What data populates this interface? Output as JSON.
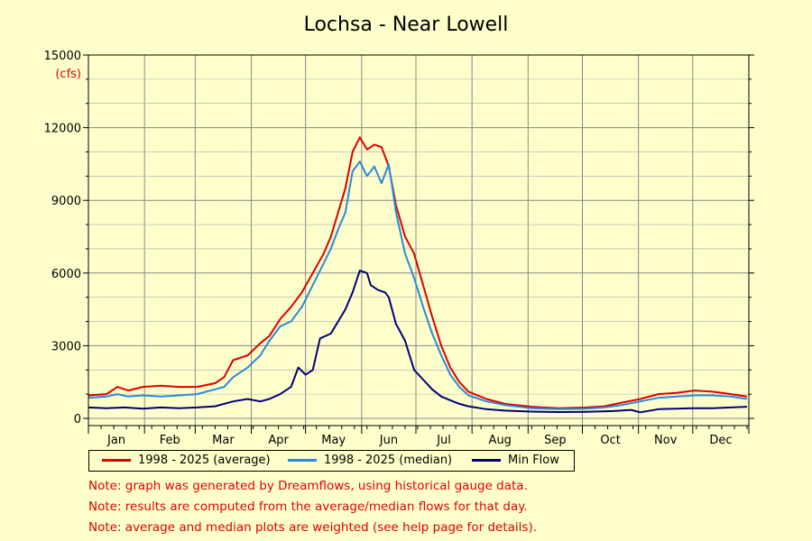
{
  "chart_data": {
    "type": "line",
    "title": "Lochsa - Near Lowell",
    "ylabel": "(cfs)",
    "ylim": [
      0,
      15000
    ],
    "yticks": [
      0,
      3000,
      6000,
      9000,
      12000,
      15000
    ],
    "xlim": [
      0,
      365
    ],
    "months": [
      "Jan",
      "Feb",
      "Mar",
      "Apr",
      "May",
      "Jun",
      "Jul",
      "Aug",
      "Sep",
      "Oct",
      "Nov",
      "Dec"
    ],
    "grid": true,
    "legend_position": "bottom",
    "series": [
      {
        "name": "1998 - 2025 (average)",
        "color": "#dd0000",
        "points": [
          [
            0,
            950
          ],
          [
            10,
            1000
          ],
          [
            16,
            1300
          ],
          [
            22,
            1150
          ],
          [
            30,
            1300
          ],
          [
            40,
            1350
          ],
          [
            50,
            1300
          ],
          [
            60,
            1300
          ],
          [
            70,
            1450
          ],
          [
            75,
            1700
          ],
          [
            80,
            2400
          ],
          [
            88,
            2600
          ],
          [
            95,
            3100
          ],
          [
            100,
            3400
          ],
          [
            106,
            4100
          ],
          [
            112,
            4600
          ],
          [
            118,
            5200
          ],
          [
            124,
            6000
          ],
          [
            130,
            6800
          ],
          [
            134,
            7500
          ],
          [
            138,
            8500
          ],
          [
            142,
            9500
          ],
          [
            146,
            11000
          ],
          [
            150,
            11600
          ],
          [
            154,
            11100
          ],
          [
            158,
            11300
          ],
          [
            162,
            11200
          ],
          [
            166,
            10400
          ],
          [
            170,
            8800
          ],
          [
            175,
            7500
          ],
          [
            180,
            6800
          ],
          [
            185,
            5500
          ],
          [
            190,
            4200
          ],
          [
            195,
            3000
          ],
          [
            200,
            2100
          ],
          [
            205,
            1500
          ],
          [
            210,
            1100
          ],
          [
            220,
            800
          ],
          [
            230,
            600
          ],
          [
            245,
            480
          ],
          [
            260,
            420
          ],
          [
            275,
            450
          ],
          [
            285,
            500
          ],
          [
            295,
            650
          ],
          [
            305,
            800
          ],
          [
            315,
            1000
          ],
          [
            325,
            1050
          ],
          [
            335,
            1150
          ],
          [
            345,
            1100
          ],
          [
            355,
            1000
          ],
          [
            364,
            900
          ]
        ]
      },
      {
        "name": "1998 - 2025 (median)",
        "color": "#2a8ad8",
        "points": [
          [
            0,
            850
          ],
          [
            10,
            900
          ],
          [
            16,
            1000
          ],
          [
            22,
            900
          ],
          [
            30,
            950
          ],
          [
            40,
            900
          ],
          [
            50,
            950
          ],
          [
            60,
            1000
          ],
          [
            70,
            1200
          ],
          [
            75,
            1300
          ],
          [
            80,
            1700
          ],
          [
            88,
            2100
          ],
          [
            95,
            2600
          ],
          [
            100,
            3200
          ],
          [
            106,
            3800
          ],
          [
            112,
            4000
          ],
          [
            118,
            4600
          ],
          [
            124,
            5500
          ],
          [
            130,
            6400
          ],
          [
            134,
            7000
          ],
          [
            138,
            7800
          ],
          [
            142,
            8500
          ],
          [
            146,
            10200
          ],
          [
            150,
            10600
          ],
          [
            154,
            10000
          ],
          [
            158,
            10400
          ],
          [
            162,
            9700
          ],
          [
            166,
            10500
          ],
          [
            170,
            8500
          ],
          [
            175,
            6800
          ],
          [
            180,
            5800
          ],
          [
            185,
            4600
          ],
          [
            190,
            3500
          ],
          [
            195,
            2600
          ],
          [
            200,
            1800
          ],
          [
            205,
            1300
          ],
          [
            210,
            950
          ],
          [
            220,
            700
          ],
          [
            230,
            550
          ],
          [
            245,
            420
          ],
          [
            260,
            380
          ],
          [
            275,
            400
          ],
          [
            285,
            450
          ],
          [
            295,
            550
          ],
          [
            305,
            700
          ],
          [
            315,
            850
          ],
          [
            325,
            900
          ],
          [
            335,
            950
          ],
          [
            345,
            950
          ],
          [
            355,
            900
          ],
          [
            364,
            800
          ]
        ]
      },
      {
        "name": "Min Flow",
        "color": "#00007a",
        "points": [
          [
            0,
            450
          ],
          [
            10,
            420
          ],
          [
            20,
            450
          ],
          [
            30,
            400
          ],
          [
            40,
            450
          ],
          [
            50,
            420
          ],
          [
            60,
            450
          ],
          [
            70,
            500
          ],
          [
            80,
            700
          ],
          [
            88,
            800
          ],
          [
            95,
            700
          ],
          [
            100,
            800
          ],
          [
            106,
            1000
          ],
          [
            112,
            1300
          ],
          [
            116,
            2100
          ],
          [
            120,
            1800
          ],
          [
            124,
            2000
          ],
          [
            128,
            3300
          ],
          [
            134,
            3500
          ],
          [
            138,
            4000
          ],
          [
            142,
            4500
          ],
          [
            146,
            5200
          ],
          [
            150,
            6100
          ],
          [
            154,
            6000
          ],
          [
            156,
            5500
          ],
          [
            160,
            5300
          ],
          [
            164,
            5200
          ],
          [
            166,
            5000
          ],
          [
            170,
            3900
          ],
          [
            175,
            3200
          ],
          [
            180,
            2000
          ],
          [
            185,
            1600
          ],
          [
            190,
            1200
          ],
          [
            195,
            900
          ],
          [
            200,
            750
          ],
          [
            205,
            600
          ],
          [
            210,
            500
          ],
          [
            220,
            380
          ],
          [
            230,
            320
          ],
          [
            245,
            280
          ],
          [
            260,
            260
          ],
          [
            275,
            270
          ],
          [
            290,
            300
          ],
          [
            300,
            350
          ],
          [
            305,
            250
          ],
          [
            315,
            380
          ],
          [
            325,
            400
          ],
          [
            335,
            420
          ],
          [
            345,
            420
          ],
          [
            355,
            450
          ],
          [
            364,
            480
          ]
        ]
      }
    ]
  },
  "notes": [
    "Note: graph was generated by Dreamflows, using historical gauge data.",
    "Note: results are computed from the average/median flows for that day.",
    "Note: average and median plots are weighted (see help page for details)."
  ]
}
